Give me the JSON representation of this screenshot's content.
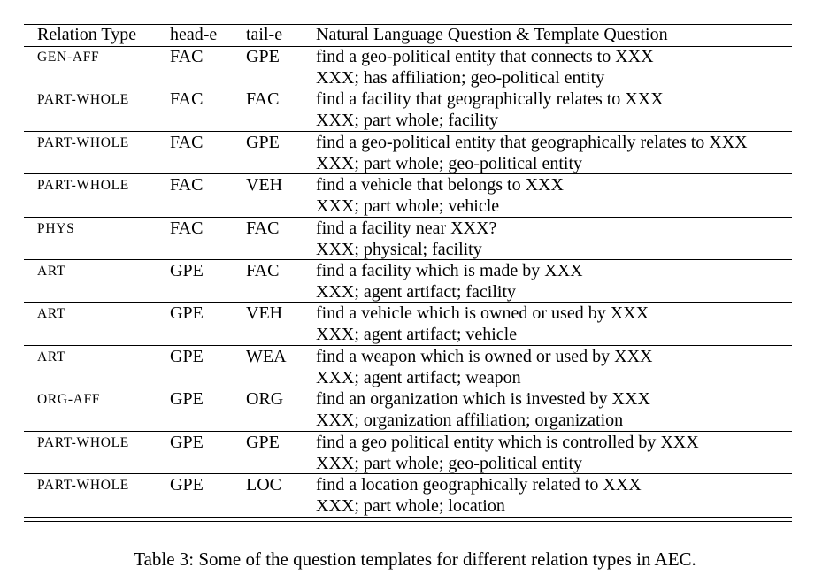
{
  "table": {
    "headers": {
      "relation_type": "Relation Type",
      "head_e": "head-e",
      "tail_e": "tail-e",
      "question": "Natural Language Question & Template Question"
    },
    "rows": [
      {
        "relation": "GEN-AFF",
        "head": "FAC",
        "tail": "GPE",
        "nl_question": "find a geo-political entity that connects to XXX",
        "template": "XXX; has affiliation; geo-political entity"
      },
      {
        "relation": "PART-WHOLE",
        "head": "FAC",
        "tail": "FAC",
        "nl_question": "find a facility that geographically relates to XXX",
        "template": "XXX; part whole; facility"
      },
      {
        "relation": "PART-WHOLE",
        "head": "FAC",
        "tail": "GPE",
        "nl_question": "find a geo-political entity that geographically relates to XXX",
        "template": "XXX; part whole; geo-political entity"
      },
      {
        "relation": "PART-WHOLE",
        "head": "FAC",
        "tail": "VEH",
        "nl_question": "find a vehicle that belongs to XXX",
        "template": "XXX; part whole; vehicle"
      },
      {
        "relation": "PHYS",
        "head": "FAC",
        "tail": "FAC",
        "nl_question": "find a facility near XXX?",
        "template": "XXX; physical; facility"
      },
      {
        "relation": "ART",
        "head": "GPE",
        "tail": "FAC",
        "nl_question": "find a facility which is made by XXX",
        "template": "XXX; agent artifact; facility"
      },
      {
        "relation": "ART",
        "head": "GPE",
        "tail": "VEH",
        "nl_question": "find a vehicle which is owned or used by XXX",
        "template": "XXX; agent artifact; vehicle"
      },
      {
        "relation": "ART",
        "head": "GPE",
        "tail": "WEA",
        "nl_question": "find a weapon which is owned or used by XXX",
        "template": "XXX; agent artifact; weapon"
      },
      {
        "relation": "ORG-AFF",
        "head": "GPE",
        "tail": "ORG",
        "nl_question": "find an organization which is invested by XXX",
        "template": "XXX; organization affiliation; organization"
      },
      {
        "relation": "PART-WHOLE",
        "head": "GPE",
        "tail": "GPE",
        "nl_question": "find a geo political entity which is controlled by XXX",
        "template": "XXX; part whole; geo-political entity"
      },
      {
        "relation": "PART-WHOLE",
        "head": "GPE",
        "tail": "LOC",
        "nl_question": "find a location geographically related to XXX",
        "template": "XXX; part whole; location"
      }
    ]
  },
  "caption": "Table 3: Some of the question templates for different relation types in AEC."
}
